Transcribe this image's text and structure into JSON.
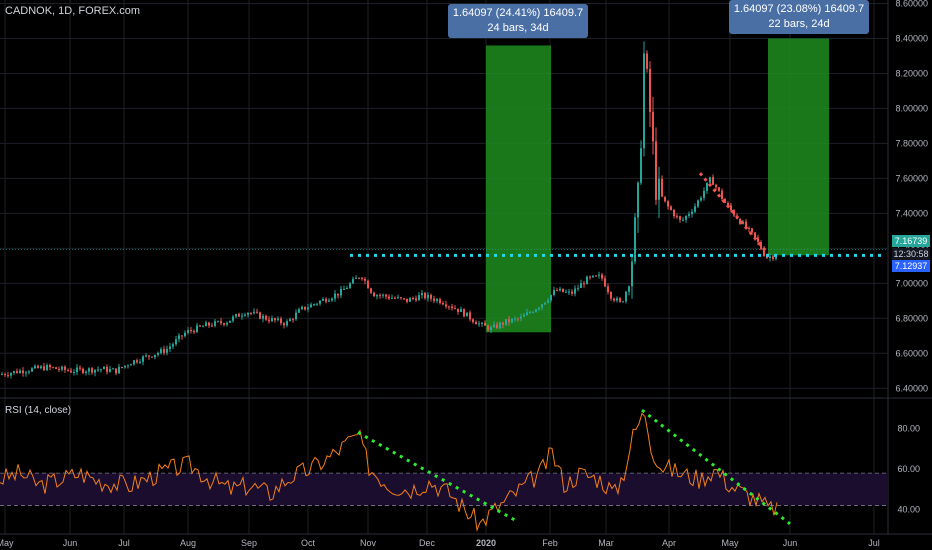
{
  "header": {
    "symbol_line": "CADNOK, 1D, FOREX.com",
    "rsi_label": "RSI (14, close)"
  },
  "measurements": [
    {
      "line1": "1.64097 (24.41%) 16409.7",
      "line2": "24 bars, 34d"
    },
    {
      "line1": "1.64097 (23.08%) 16409.7",
      "line2": "22 bars, 24d"
    }
  ],
  "price_tags": {
    "current": "7.16739",
    "countdown": "12:30:58",
    "secondary": "7.12937"
  },
  "colors": {
    "up": "#26a69a",
    "down": "#ef5350",
    "rsi": "#f57f17",
    "trend_rsi": "#2eea2e",
    "support": "#23d5e6",
    "measure": "#1f8c1f",
    "band": "#1a0d2e"
  },
  "chart_data": [
    {
      "type": "candlestick",
      "title": "CADNOK, 1D, FOREX.com",
      "x_ticks": [
        "May",
        "Jun",
        "Jul",
        "Aug",
        "Sep",
        "Oct",
        "Nov",
        "Dec",
        "2020",
        "Feb",
        "Mar",
        "Apr",
        "May",
        "Jun",
        "Jul"
      ],
      "y_ticks": [
        "8.60000",
        "8.40000",
        "8.20000",
        "8.00000",
        "7.80000",
        "7.60000",
        "7.40000",
        "7.20000",
        "7.00000",
        "6.80000",
        "6.60000",
        "6.40000"
      ],
      "ylim": [
        6.35,
        8.62
      ],
      "close_path": [
        [
          0,
          6.48
        ],
        [
          20,
          6.5
        ],
        [
          45,
          6.52
        ],
        [
          70,
          6.5
        ],
        [
          100,
          6.51
        ],
        [
          115,
          6.5
        ],
        [
          130,
          6.55
        ],
        [
          145,
          6.58
        ],
        [
          165,
          6.62
        ],
        [
          185,
          6.72
        ],
        [
          205,
          6.76
        ],
        [
          225,
          6.78
        ],
        [
          245,
          6.84
        ],
        [
          265,
          6.8
        ],
        [
          285,
          6.77
        ],
        [
          300,
          6.85
        ],
        [
          320,
          6.9
        ],
        [
          340,
          6.95
        ],
        [
          360,
          7.05
        ],
        [
          372,
          6.94
        ],
        [
          390,
          6.92
        ],
        [
          405,
          6.9
        ],
        [
          420,
          6.93
        ],
        [
          440,
          6.9
        ],
        [
          460,
          6.84
        ],
        [
          480,
          6.76
        ],
        [
          490,
          6.74
        ],
        [
          505,
          6.78
        ],
        [
          520,
          6.8
        ],
        [
          540,
          6.88
        ],
        [
          555,
          6.96
        ],
        [
          570,
          6.94
        ],
        [
          585,
          7.02
        ],
        [
          600,
          7.04
        ],
        [
          610,
          6.93
        ],
        [
          620,
          6.88
        ],
        [
          628,
          7.0
        ],
        [
          633,
          7.25
        ],
        [
          638,
          7.55
        ],
        [
          643,
          8.3
        ],
        [
          648,
          8.05
        ],
        [
          655,
          7.55
        ],
        [
          665,
          7.45
        ],
        [
          680,
          7.35
        ],
        [
          695,
          7.45
        ],
        [
          710,
          7.6
        ],
        [
          725,
          7.45
        ],
        [
          740,
          7.35
        ],
        [
          755,
          7.25
        ],
        [
          765,
          7.15
        ],
        [
          775,
          7.16
        ]
      ],
      "support_level": 7.16,
      "support_from_x": 350,
      "resistance_trend": [
        [
          700,
          7.63
        ],
        [
          768,
          7.17
        ]
      ],
      "measure_boxes": [
        {
          "x1": 486,
          "x2": 551,
          "y_low": 6.72,
          "y_high": 8.36
        },
        {
          "x1": 768,
          "x2": 829,
          "y_low": 7.16,
          "y_high": 8.4
        }
      ]
    },
    {
      "type": "line",
      "title": "RSI (14, close)",
      "y_ticks": [
        "80.00",
        "60.00",
        "40.00"
      ],
      "ylim": [
        28,
        94
      ],
      "band": [
        42,
        58
      ],
      "values": [
        [
          0,
          55
        ],
        [
          20,
          58
        ],
        [
          40,
          52
        ],
        [
          60,
          55
        ],
        [
          80,
          58
        ],
        [
          100,
          54
        ],
        [
          130,
          52
        ],
        [
          150,
          56
        ],
        [
          170,
          60
        ],
        [
          190,
          62
        ],
        [
          210,
          55
        ],
        [
          230,
          50
        ],
        [
          250,
          52
        ],
        [
          270,
          48
        ],
        [
          290,
          56
        ],
        [
          310,
          60
        ],
        [
          330,
          66
        ],
        [
          345,
          72
        ],
        [
          358,
          77
        ],
        [
          370,
          60
        ],
        [
          390,
          52
        ],
        [
          410,
          50
        ],
        [
          430,
          54
        ],
        [
          450,
          48
        ],
        [
          465,
          40
        ],
        [
          480,
          33
        ],
        [
          490,
          38
        ],
        [
          505,
          44
        ],
        [
          520,
          50
        ],
        [
          540,
          58
        ],
        [
          552,
          68
        ],
        [
          565,
          52
        ],
        [
          580,
          58
        ],
        [
          600,
          55
        ],
        [
          615,
          48
        ],
        [
          625,
          60
        ],
        [
          632,
          75
        ],
        [
          638,
          82
        ],
        [
          645,
          88
        ],
        [
          652,
          70
        ],
        [
          660,
          62
        ],
        [
          680,
          58
        ],
        [
          700,
          55
        ],
        [
          715,
          60
        ],
        [
          730,
          52
        ],
        [
          745,
          48
        ],
        [
          760,
          44
        ],
        [
          770,
          40
        ],
        [
          778,
          42
        ]
      ],
      "trend_1": [
        [
          358,
          78
        ],
        [
          518,
          34
        ]
      ],
      "trend_2": [
        [
          642,
          89
        ],
        [
          790,
          33
        ]
      ]
    }
  ]
}
